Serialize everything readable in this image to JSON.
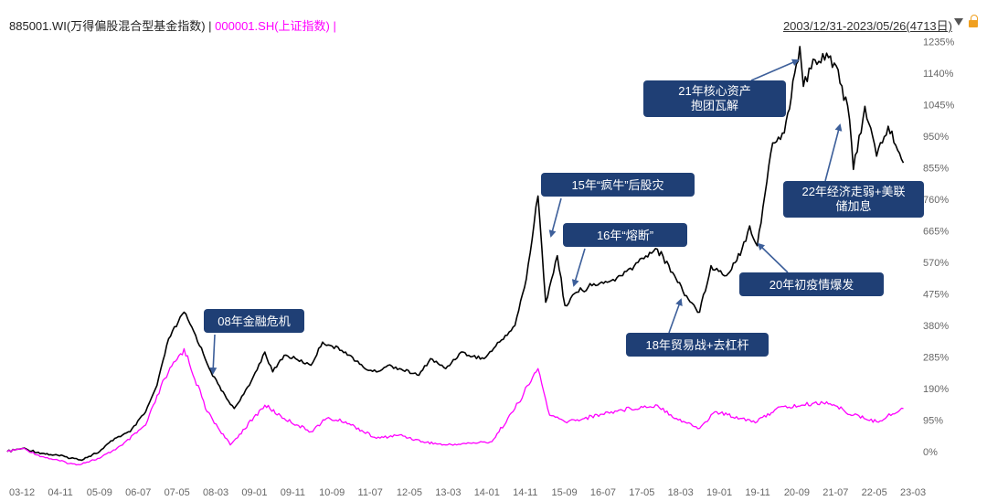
{
  "header": {
    "series1_label": "885001.WI(万得偏股混合型基金指数)",
    "separator": " | ",
    "series2_label": "000001.SH(上证指数)",
    "series2_suffix": " |",
    "date_range": "2003/12/31-2023/05/26(4713日)",
    "icons": [
      "caret-down-icon",
      "lock-icon"
    ]
  },
  "colors": {
    "series1": "#000000",
    "series2": "#ff00ff",
    "annotation_bg": "#1f3f75",
    "arrow": "#3d5f9a"
  },
  "chart_data": {
    "type": "line",
    "x_unit": "yy-mm",
    "y_unit": "%",
    "ylim": [
      -60,
      1280
    ],
    "grid": false,
    "x_ticks": [
      "03-12",
      "04-11",
      "05-09",
      "06-07",
      "07-05",
      "08-03",
      "09-01",
      "09-11",
      "10-09",
      "11-07",
      "12-05",
      "13-03",
      "14-01",
      "14-11",
      "15-09",
      "16-07",
      "17-05",
      "18-03",
      "19-01",
      "19-11",
      "20-09",
      "21-07",
      "22-05",
      "23-03"
    ],
    "y_ticks": [
      "0%",
      "95%",
      "190%",
      "285%",
      "380%",
      "475%",
      "570%",
      "665%",
      "760%",
      "855%",
      "950%",
      "1045%",
      "1140%",
      "1235%"
    ],
    "series": [
      {
        "name": "885001.WI(万得偏股混合型基金指数)",
        "color": "#000000",
        "points": [
          [
            "2003-12",
            0
          ],
          [
            "2004-04",
            10
          ],
          [
            "2004-09",
            -5
          ],
          [
            "2005-03",
            -15
          ],
          [
            "2005-07",
            -25
          ],
          [
            "2005-12",
            0
          ],
          [
            "2006-04",
            40
          ],
          [
            "2006-08",
            60
          ],
          [
            "2006-12",
            120
          ],
          [
            "2007-03",
            200
          ],
          [
            "2007-06",
            340
          ],
          [
            "2007-10",
            420
          ],
          [
            "2008-01",
            350
          ],
          [
            "2008-05",
            240
          ],
          [
            "2008-09",
            160
          ],
          [
            "2008-11",
            130
          ],
          [
            "2009-03",
            200
          ],
          [
            "2009-07",
            300
          ],
          [
            "2009-09",
            240
          ],
          [
            "2009-12",
            290
          ],
          [
            "2010-03",
            280
          ],
          [
            "2010-07",
            260
          ],
          [
            "2010-10",
            330
          ],
          [
            "2010-12",
            320
          ],
          [
            "2011-04",
            300
          ],
          [
            "2011-09",
            250
          ],
          [
            "2011-12",
            240
          ],
          [
            "2012-03",
            260
          ],
          [
            "2012-06",
            250
          ],
          [
            "2012-11",
            230
          ],
          [
            "2013-02",
            280
          ],
          [
            "2013-06",
            250
          ],
          [
            "2013-10",
            300
          ],
          [
            "2013-12",
            290
          ],
          [
            "2014-04",
            280
          ],
          [
            "2014-08",
            330
          ],
          [
            "2014-12",
            380
          ],
          [
            "2015-03",
            520
          ],
          [
            "2015-06",
            770
          ],
          [
            "2015-08",
            450
          ],
          [
            "2015-11",
            590
          ],
          [
            "2016-01",
            440
          ],
          [
            "2016-04",
            480
          ],
          [
            "2016-08",
            500
          ],
          [
            "2016-12",
            510
          ],
          [
            "2017-04",
            530
          ],
          [
            "2017-08",
            570
          ],
          [
            "2017-11",
            600
          ],
          [
            "2018-01",
            610
          ],
          [
            "2018-05",
            540
          ],
          [
            "2018-09",
            460
          ],
          [
            "2018-12",
            420
          ],
          [
            "2019-03",
            560
          ],
          [
            "2019-07",
            530
          ],
          [
            "2019-11",
            610
          ],
          [
            "2020-01",
            680
          ],
          [
            "2020-03",
            620
          ],
          [
            "2020-07",
            930
          ],
          [
            "2020-10",
            960
          ],
          [
            "2021-02",
            1220
          ],
          [
            "2021-03",
            1100
          ],
          [
            "2021-06",
            1180
          ],
          [
            "2021-09",
            1200
          ],
          [
            "2021-12",
            1150
          ],
          [
            "2022-03",
            1000
          ],
          [
            "2022-04",
            850
          ],
          [
            "2022-07",
            1040
          ],
          [
            "2022-10",
            890
          ],
          [
            "2023-01",
            980
          ],
          [
            "2023-05",
            870
          ]
        ]
      },
      {
        "name": "000001.SH(上证指数)",
        "color": "#ff00ff",
        "points": [
          [
            "2003-12",
            0
          ],
          [
            "2004-04",
            10
          ],
          [
            "2004-09",
            -15
          ],
          [
            "2005-06",
            -40
          ],
          [
            "2005-12",
            -20
          ],
          [
            "2006-06",
            20
          ],
          [
            "2006-12",
            80
          ],
          [
            "2007-05",
            220
          ],
          [
            "2007-10",
            310
          ],
          [
            "2008-04",
            120
          ],
          [
            "2008-10",
            20
          ],
          [
            "2009-07",
            140
          ],
          [
            "2009-12",
            100
          ],
          [
            "2010-07",
            60
          ],
          [
            "2010-11",
            100
          ],
          [
            "2011-04",
            90
          ],
          [
            "2011-12",
            40
          ],
          [
            "2012-06",
            50
          ],
          [
            "2012-12",
            30
          ],
          [
            "2013-06",
            20
          ],
          [
            "2014-06",
            30
          ],
          [
            "2014-12",
            130
          ],
          [
            "2015-06",
            250
          ],
          [
            "2015-09",
            110
          ],
          [
            "2016-01",
            90
          ],
          [
            "2016-06",
            100
          ],
          [
            "2017-01",
            120
          ],
          [
            "2017-06",
            130
          ],
          [
            "2018-01",
            140
          ],
          [
            "2018-06",
            100
          ],
          [
            "2018-12",
            70
          ],
          [
            "2019-04",
            120
          ],
          [
            "2019-11",
            100
          ],
          [
            "2020-03",
            90
          ],
          [
            "2020-08",
            130
          ],
          [
            "2021-03",
            140
          ],
          [
            "2021-09",
            150
          ],
          [
            "2022-04",
            110
          ],
          [
            "2022-10",
            90
          ],
          [
            "2023-05",
            130
          ]
        ]
      }
    ],
    "annotations": [
      {
        "text": "08年金融危机",
        "date": "2008-09",
        "value": 240
      },
      {
        "text": "15年“疯牛”后股灾",
        "date": "2015-08",
        "value": 670
      },
      {
        "text": "16年“熔断”",
        "date": "2016-01",
        "value": 490
      },
      {
        "text": "18年贸易战+去杠杆",
        "date": "2018-09",
        "value": 460
      },
      {
        "text": "20年初疫情爆发",
        "date": "2020-03",
        "value": 640
      },
      {
        "text": [
          "21年核心资产",
          "抱团瓦解"
        ],
        "date": "2021-02",
        "value": 1220
      },
      {
        "text": [
          "22年经济走弱+美联",
          "储加息"
        ],
        "date": "2022-04",
        "value": 990
      }
    ]
  }
}
